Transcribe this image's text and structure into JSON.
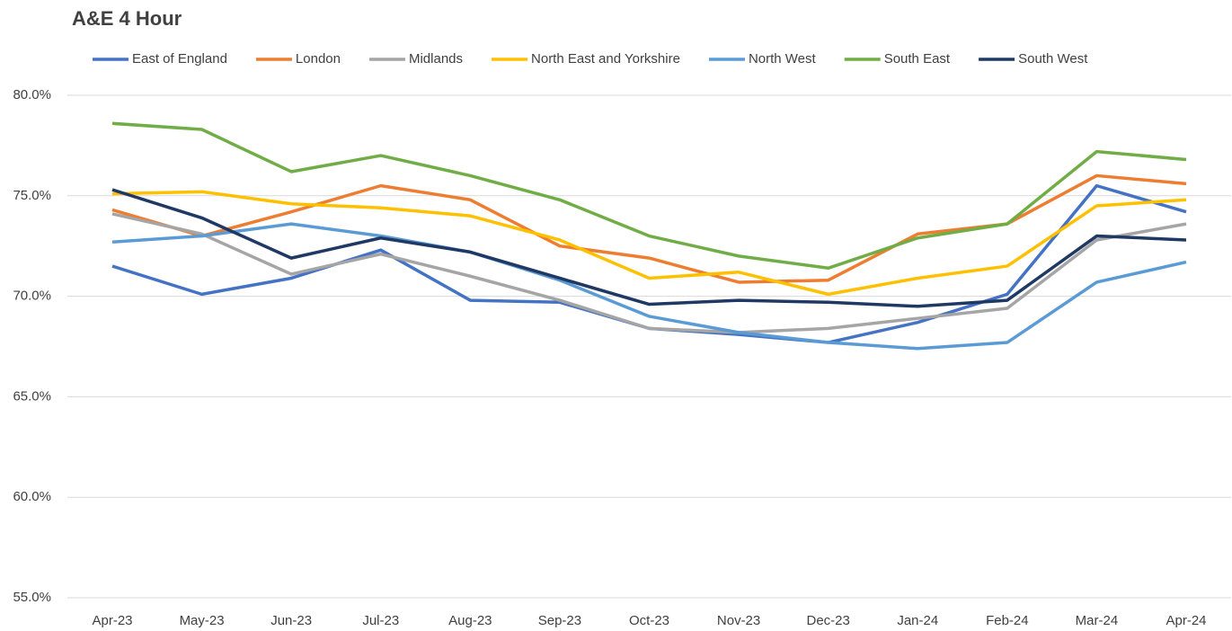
{
  "chart_data": {
    "type": "line",
    "title": "A&E 4 Hour",
    "categories": [
      "Apr-23",
      "May-23",
      "Jun-23",
      "Jul-23",
      "Aug-23",
      "Sep-23",
      "Oct-23",
      "Nov-23",
      "Dec-23",
      "Jan-24",
      "Feb-24",
      "Mar-24",
      "Apr-24"
    ],
    "series": [
      {
        "name": "East of England",
        "color": "#4472c4",
        "values": [
          71.5,
          70.1,
          70.9,
          72.3,
          69.8,
          69.7,
          68.4,
          68.1,
          67.7,
          68.7,
          70.1,
          75.5,
          74.2
        ]
      },
      {
        "name": "London",
        "color": "#ed7d31",
        "values": [
          74.3,
          73.0,
          74.2,
          75.5,
          74.8,
          72.5,
          71.9,
          70.7,
          70.8,
          73.1,
          73.6,
          76.0,
          75.6
        ]
      },
      {
        "name": "Midlands",
        "color": "#a5a5a5",
        "values": [
          74.1,
          73.1,
          71.1,
          72.1,
          71.0,
          69.8,
          68.4,
          68.2,
          68.4,
          68.9,
          69.4,
          72.8,
          73.6
        ]
      },
      {
        "name": "North East and Yorkshire",
        "color": "#ffc000",
        "values": [
          75.1,
          75.2,
          74.6,
          74.4,
          74.0,
          72.8,
          70.9,
          71.2,
          70.1,
          70.9,
          71.5,
          74.5,
          74.8
        ]
      },
      {
        "name": "North West",
        "color": "#5b9bd5",
        "values": [
          72.7,
          73.0,
          73.6,
          73.0,
          72.2,
          70.8,
          69.0,
          68.2,
          67.7,
          67.4,
          67.7,
          70.7,
          71.7
        ]
      },
      {
        "name": "South East",
        "color": "#70ad47",
        "values": [
          78.6,
          78.3,
          76.2,
          77.0,
          76.0,
          74.8,
          73.0,
          72.0,
          71.4,
          72.9,
          73.6,
          77.2,
          76.8
        ]
      },
      {
        "name": "South West",
        "color": "#1f3864",
        "values": [
          75.3,
          73.9,
          71.9,
          72.9,
          72.2,
          70.9,
          69.6,
          69.8,
          69.7,
          69.5,
          69.8,
          73.0,
          72.8
        ]
      }
    ],
    "ylim": [
      55,
      80
    ],
    "yticks": [
      {
        "value": 55,
        "label": "55.0%"
      },
      {
        "value": 60,
        "label": "60.0%"
      },
      {
        "value": 65,
        "label": "65.0%"
      },
      {
        "value": 70,
        "label": "70.0%"
      },
      {
        "value": 75,
        "label": "75.0%"
      },
      {
        "value": 80,
        "label": "80.0%"
      }
    ],
    "grid": true,
    "legend": "top"
  }
}
